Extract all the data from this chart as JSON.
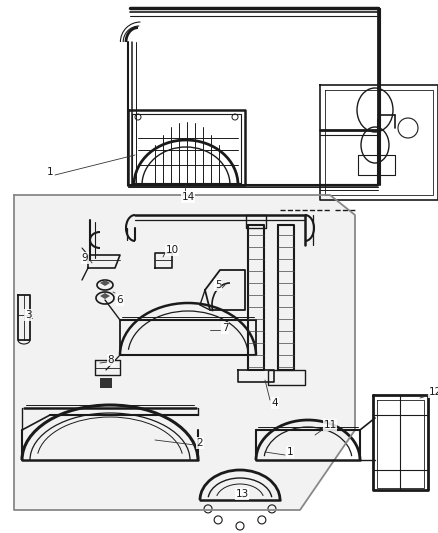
{
  "bg_color": "#ffffff",
  "line_color": "#1a1a1a",
  "fig_width": 4.38,
  "fig_height": 5.33,
  "dpi": 100,
  "panel_color": "#f2f2f2",
  "panel_edge": "#888888",
  "label_fs": 7.5
}
